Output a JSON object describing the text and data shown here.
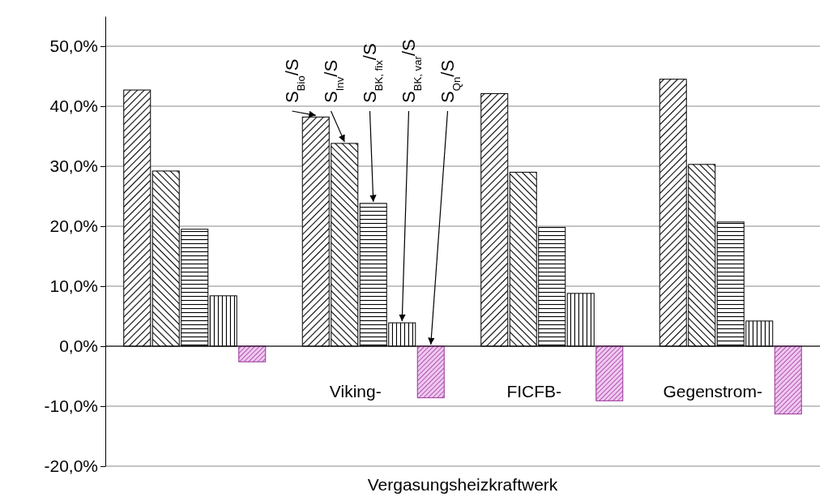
{
  "chart_data": {
    "type": "bar",
    "xlabel": "Vergasungsheizkraftwerk",
    "categories": [
      null,
      "Viking-",
      "FICFB-",
      "Gegenstrom-"
    ],
    "series": [
      {
        "name": "S$_{Bio}$/S",
        "color": "#000000",
        "values": [
          42.7,
          38.2,
          42.1,
          44.5
        ]
      },
      {
        "name": "S$_{Inv}$/S",
        "color": "#000000",
        "values": [
          29.2,
          33.8,
          29.0,
          30.3
        ]
      },
      {
        "name": "S$_{BK, fix}$/S",
        "color": "#000000",
        "values": [
          19.5,
          23.8,
          19.8,
          20.7
        ]
      },
      {
        "name": "S$_{BK, var}$/S",
        "color": "#000000",
        "values": [
          8.4,
          3.9,
          8.8,
          4.2
        ]
      },
      {
        "name": "S$_{Qn}$/S",
        "color": "#993399",
        "values": [
          -2.6,
          -8.6,
          -9.1,
          -11.3
        ]
      }
    ],
    "ylim": [
      -20,
      55
    ],
    "yticks": [
      {
        "value": -20,
        "label": "-20,0%"
      },
      {
        "value": -10,
        "label": "-10,0%"
      },
      {
        "value": 0,
        "label": "0,0%"
      },
      {
        "value": 10,
        "label": "10,0%"
      },
      {
        "value": 20,
        "label": "20,0%"
      },
      {
        "value": 30,
        "label": "30,0%"
      },
      {
        "value": 40,
        "label": "40,0%"
      },
      {
        "value": 50,
        "label": "50,0%"
      }
    ],
    "grid": "y",
    "legend": false
  }
}
